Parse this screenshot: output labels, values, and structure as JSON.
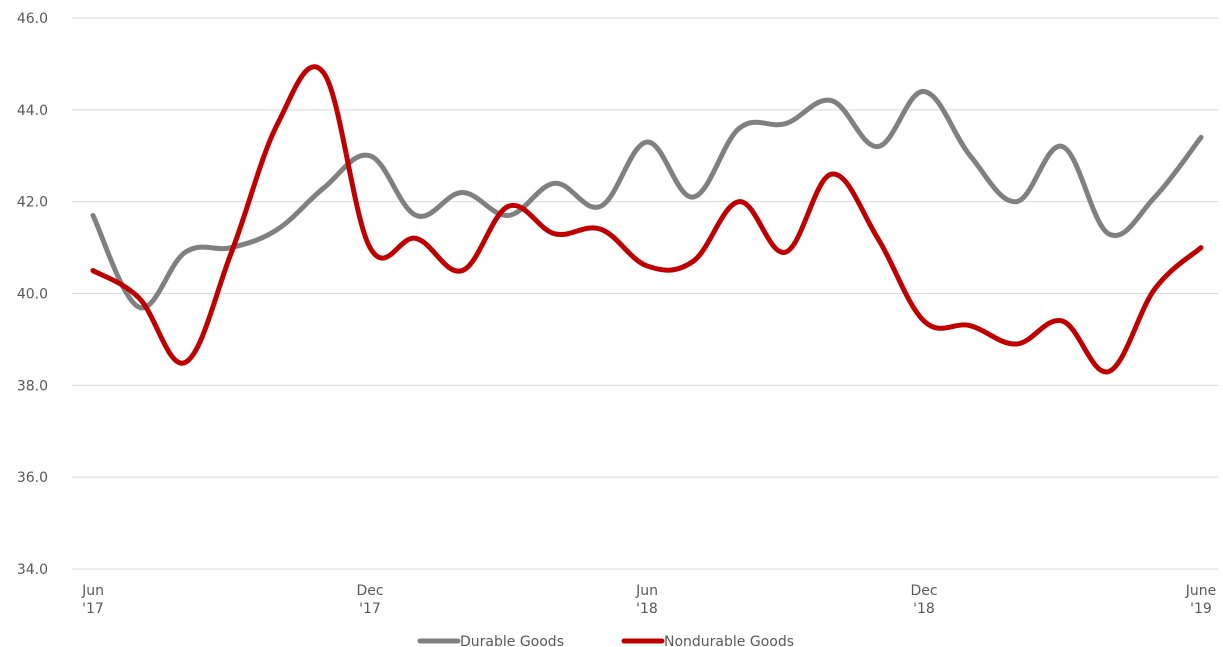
{
  "chart_data": {
    "type": "line",
    "title": "",
    "xlabel": "",
    "ylabel": "",
    "ylim": [
      34.0,
      46.0
    ],
    "y_ticks": [
      "34.0",
      "36.0",
      "38.0",
      "40.0",
      "42.0",
      "44.0",
      "46.0"
    ],
    "y_tick_values": [
      34,
      36,
      38,
      40,
      42,
      44,
      46
    ],
    "x": [
      "Jun 2017",
      "Jul 2017",
      "Aug 2017",
      "Sep 2017",
      "Oct 2017",
      "Nov 2017",
      "Dec 2017",
      "Jan 2018",
      "Feb 2018",
      "Mar 2018",
      "Apr 2018",
      "May 2018",
      "Jun 2018",
      "Jul 2018",
      "Aug 2018",
      "Sep 2018",
      "Oct 2018",
      "Nov 2018",
      "Dec 2018",
      "Jan 2019",
      "Feb 2019",
      "Mar 2019",
      "Apr 2019",
      "May 2019",
      "Jun 2019"
    ],
    "x_tick_labels": [
      {
        "index": 0,
        "line1": "Jun",
        "line2": "'17"
      },
      {
        "index": 6,
        "line1": "Dec",
        "line2": "'17"
      },
      {
        "index": 12,
        "line1": "Jun",
        "line2": "'18"
      },
      {
        "index": 18,
        "line1": "Dec",
        "line2": "'18"
      },
      {
        "index": 24,
        "line1": "June",
        "line2": "'19"
      }
    ],
    "grid": true,
    "legend_position": "bottom-center",
    "series": [
      {
        "name": "Durable Goods",
        "color": "#808080",
        "values": [
          41.7,
          39.7,
          40.9,
          41.0,
          41.4,
          42.3,
          43.0,
          41.7,
          42.2,
          41.7,
          42.4,
          41.9,
          43.3,
          42.1,
          43.6,
          43.7,
          44.2,
          43.2,
          44.4,
          43.0,
          42.0,
          43.2,
          41.3,
          42.1,
          43.4
        ]
      },
      {
        "name": "Nondurable Goods",
        "color": "#C00000",
        "values": [
          40.5,
          39.9,
          38.5,
          40.9,
          43.7,
          44.8,
          41.0,
          41.2,
          40.5,
          41.9,
          41.3,
          41.4,
          40.6,
          40.7,
          42.0,
          40.9,
          42.6,
          41.2,
          39.4,
          39.3,
          38.9,
          39.4,
          38.3,
          40.1,
          41.0
        ]
      }
    ]
  }
}
